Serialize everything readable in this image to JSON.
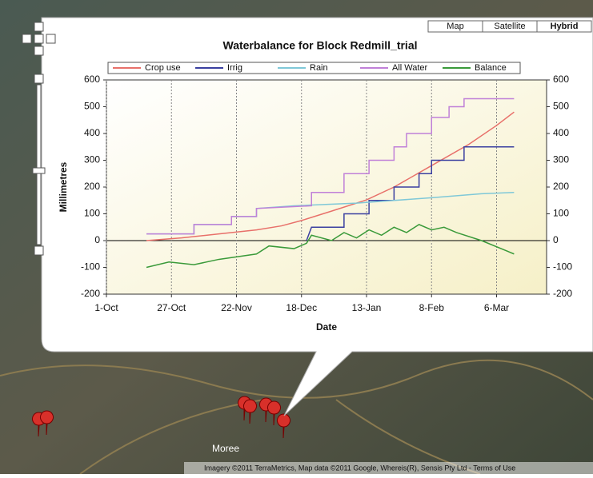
{
  "map": {
    "map_types": [
      "Map",
      "Satellite",
      "Hybrid"
    ],
    "places": [
      "Moree"
    ],
    "attribution": "Imagery ©2011 TerraMetrics, Map data ©2011 Google, Whereis(R), Sensis Pty Ltd - Terms of Use"
  },
  "chart_data": {
    "type": "line",
    "title": "Waterbalance for Block Redmill_trial",
    "x_label": "Date",
    "y_label": "Millimetres",
    "xlim": [
      0,
      176
    ],
    "ylim": [
      -200,
      600
    ],
    "xticks": [
      {
        "value": 0,
        "label": "1-Oct"
      },
      {
        "value": 26,
        "label": "27-Oct"
      },
      {
        "value": 52,
        "label": "22-Nov"
      },
      {
        "value": 78,
        "label": "18-Dec"
      },
      {
        "value": 104,
        "label": "13-Jan"
      },
      {
        "value": 130,
        "label": "8-Feb"
      },
      {
        "value": 156,
        "label": "6-Mar"
      }
    ],
    "yticks": [
      -200,
      -100,
      0,
      100,
      200,
      300,
      400,
      500,
      600
    ],
    "right_axis": true,
    "grid": "x",
    "legend": "top",
    "series": [
      {
        "name": "Crop use",
        "color": "#e8706a",
        "x": [
          16,
          30,
          45,
          60,
          70,
          78,
          90,
          104,
          115,
          130,
          145,
          156,
          163
        ],
        "values": [
          0,
          10,
          25,
          40,
          55,
          75,
          110,
          152,
          200,
          280,
          360,
          430,
          480
        ]
      },
      {
        "name": "Irrig",
        "color": "#3a3fa0",
        "x": [
          80,
          82,
          95,
          95,
          105,
          105,
          115,
          115,
          125,
          125,
          130,
          130,
          143,
          143,
          163
        ],
        "values": [
          0,
          50,
          50,
          100,
          100,
          150,
          150,
          200,
          200,
          250,
          250,
          300,
          300,
          350,
          350
        ]
      },
      {
        "name": "Rain",
        "color": "#7fc8d8",
        "x": [
          16,
          35,
          35,
          50,
          50,
          60,
          60,
          75,
          100,
          115,
          130,
          150,
          163
        ],
        "values": [
          25,
          25,
          60,
          60,
          90,
          90,
          120,
          130,
          140,
          150,
          160,
          175,
          180
        ]
      },
      {
        "name": "All Water",
        "color": "#c080d8",
        "x": [
          16,
          35,
          35,
          50,
          50,
          60,
          60,
          82,
          82,
          95,
          95,
          105,
          105,
          115,
          115,
          120,
          120,
          130,
          130,
          137,
          137,
          143,
          143,
          163
        ],
        "values": [
          25,
          25,
          60,
          60,
          90,
          90,
          120,
          130,
          180,
          180,
          250,
          250,
          300,
          300,
          350,
          350,
          400,
          400,
          460,
          460,
          500,
          500,
          530,
          530
        ]
      },
      {
        "name": "Balance",
        "color": "#3a9a3a",
        "x": [
          16,
          25,
          35,
          45,
          60,
          65,
          75,
          80,
          82,
          90,
          95,
          100,
          105,
          110,
          115,
          120,
          125,
          130,
          135,
          140,
          150,
          163
        ],
        "values": [
          -100,
          -80,
          -90,
          -70,
          -50,
          -20,
          -30,
          -10,
          20,
          0,
          30,
          10,
          40,
          20,
          50,
          30,
          60,
          40,
          50,
          30,
          0,
          -50
        ]
      }
    ]
  }
}
